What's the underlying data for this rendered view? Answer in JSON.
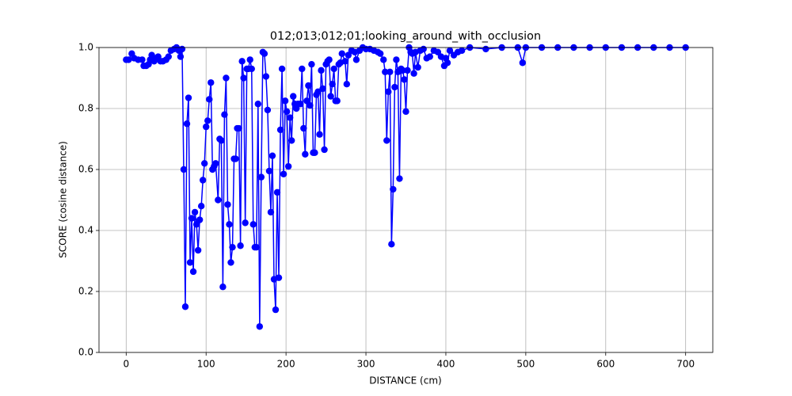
{
  "chart_data": {
    "type": "line",
    "title": "012;013;012;01;looking_around_with_occlusion",
    "x_label": "DISTANCE (cm)",
    "y_label": "SCORE (cosine distance)",
    "x": [
      0,
      3,
      7,
      10,
      15,
      20,
      22,
      25,
      28,
      30,
      32,
      35,
      38,
      40,
      43,
      46,
      50,
      53,
      56,
      60,
      63,
      66,
      68,
      70,
      72,
      74,
      76,
      78,
      80,
      82,
      84,
      86,
      88,
      90,
      92,
      94,
      96,
      98,
      100,
      102,
      104,
      106,
      108,
      110,
      112,
      115,
      117,
      119,
      121,
      123,
      125,
      127,
      129,
      131,
      133,
      135,
      137,
      139,
      141,
      143,
      145,
      147,
      149,
      151,
      153,
      155,
      157,
      159,
      161,
      163,
      165,
      167,
      169,
      171,
      173,
      175,
      177,
      179,
      181,
      183,
      185,
      187,
      189,
      191,
      193,
      195,
      197,
      199,
      201,
      203,
      205,
      207,
      209,
      211,
      213,
      215,
      218,
      220,
      222,
      224,
      226,
      228,
      230,
      232,
      234,
      236,
      238,
      240,
      242,
      244,
      246,
      248,
      250,
      252,
      254,
      256,
      258,
      260,
      262,
      264,
      266,
      268,
      270,
      274,
      276,
      278,
      282,
      286,
      288,
      292,
      296,
      300,
      305,
      310,
      315,
      318,
      322,
      324,
      326,
      328,
      330,
      332,
      334,
      336,
      338,
      340,
      342,
      344,
      346,
      348,
      350,
      352,
      354,
      356,
      358,
      360,
      362,
      365,
      368,
      372,
      376,
      380,
      385,
      390,
      394,
      398,
      400,
      402,
      405,
      410,
      415,
      420,
      430,
      450,
      470,
      490,
      496,
      500,
      520,
      540,
      560,
      580,
      600,
      620,
      640,
      660,
      680,
      700
    ],
    "series": [
      {
        "color": "#0000ff",
        "values": [
          0.96,
          0.96,
          0.98,
          0.965,
          0.96,
          0.96,
          0.94,
          0.94,
          0.945,
          0.96,
          0.975,
          0.955,
          0.965,
          0.97,
          0.955,
          0.955,
          0.96,
          0.97,
          0.99,
          0.995,
          1.0,
          0.99,
          0.97,
          0.995,
          0.6,
          0.15,
          0.75,
          0.835,
          0.295,
          0.44,
          0.265,
          0.46,
          0.42,
          0.335,
          0.435,
          0.48,
          0.565,
          0.62,
          0.74,
          0.76,
          0.83,
          0.885,
          0.6,
          0.61,
          0.62,
          0.5,
          0.7,
          0.695,
          0.215,
          0.78,
          0.9,
          0.485,
          0.42,
          0.295,
          0.345,
          0.635,
          0.635,
          0.735,
          0.735,
          0.35,
          0.955,
          0.9,
          0.425,
          0.93,
          0.93,
          0.96,
          0.93,
          0.42,
          0.345,
          0.345,
          0.815,
          0.085,
          0.575,
          0.985,
          0.98,
          0.905,
          0.795,
          0.595,
          0.46,
          0.645,
          0.24,
          0.14,
          0.525,
          0.245,
          0.73,
          0.93,
          0.585,
          0.825,
          0.79,
          0.61,
          0.77,
          0.695,
          0.84,
          0.815,
          0.8,
          0.815,
          0.815,
          0.93,
          0.735,
          0.65,
          0.825,
          0.875,
          0.81,
          0.945,
          0.655,
          0.655,
          0.845,
          0.855,
          0.715,
          0.925,
          0.865,
          0.665,
          0.945,
          0.955,
          0.96,
          0.84,
          0.88,
          0.93,
          0.825,
          0.825,
          0.945,
          0.95,
          0.98,
          0.955,
          0.88,
          0.975,
          0.99,
          0.985,
          0.96,
          0.99,
          1.0,
          0.995,
          0.995,
          0.99,
          0.985,
          0.98,
          0.96,
          0.92,
          0.695,
          0.855,
          0.92,
          0.355,
          0.535,
          0.87,
          0.96,
          0.92,
          0.57,
          0.93,
          0.925,
          0.895,
          0.79,
          0.925,
          1.0,
          0.985,
          0.98,
          0.915,
          0.985,
          0.935,
          0.99,
          0.995,
          0.965,
          0.97,
          0.99,
          0.985,
          0.97,
          0.94,
          0.965,
          0.95,
          0.99,
          0.975,
          0.985,
          0.99,
          1.0,
          0.995,
          1.0,
          1.0,
          0.95,
          1.0,
          1.0,
          1.0,
          1.0,
          1.0,
          1.0,
          1.0,
          1.0,
          1.0,
          1.0,
          1.0
        ]
      }
    ],
    "xlim": [
      -34,
      734
    ],
    "ylim": [
      0,
      1
    ],
    "xticks": [
      0,
      100,
      200,
      300,
      400,
      500,
      600,
      700
    ],
    "yticks": [
      {
        "value": 0,
        "label": "0.0"
      },
      0.2,
      0.4,
      0.6,
      0.8,
      {
        "value": 1,
        "label": "1.0"
      }
    ],
    "grid": true
  }
}
